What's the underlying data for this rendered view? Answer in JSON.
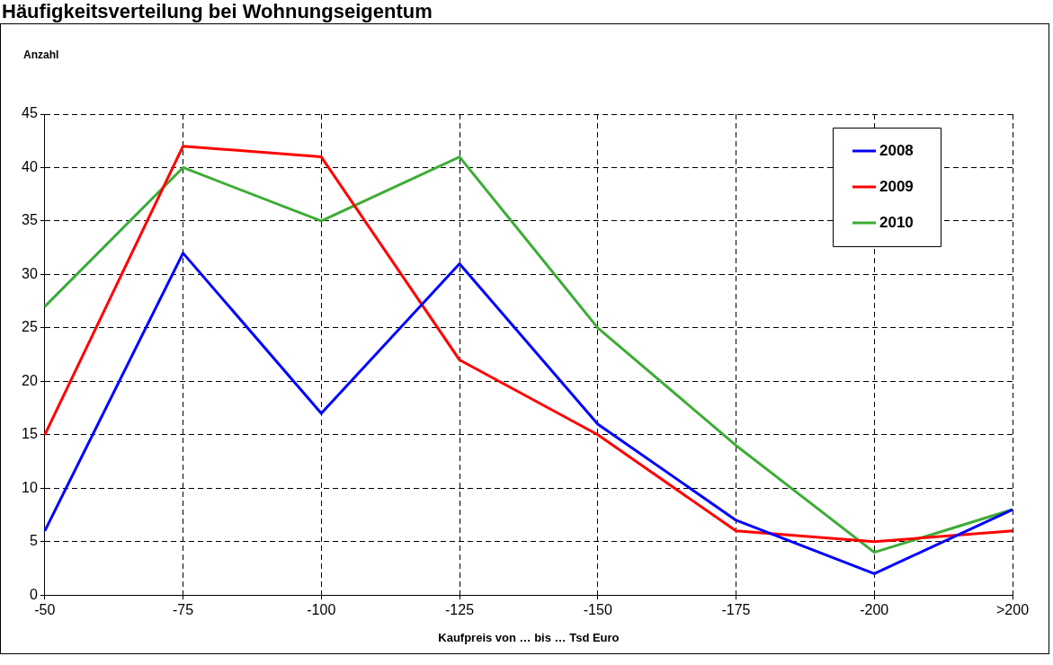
{
  "chart_data": {
    "type": "line",
    "title": "Häufigkeitsverteilung bei Wohnungseigentum",
    "xlabel": "Kaufpreis von … bis … Tsd Euro",
    "ylabel": "Anzahl",
    "categories": [
      "-50",
      "-75",
      "-100",
      "-125",
      "-150",
      "-175",
      "-200",
      ">200"
    ],
    "series": [
      {
        "name": "2008",
        "color": "#0000ff",
        "values": [
          6,
          32,
          17,
          31,
          16,
          7,
          2,
          8
        ]
      },
      {
        "name": "2009",
        "color": "#ff0000",
        "values": [
          15,
          42,
          41,
          22,
          15,
          6,
          5,
          6
        ]
      },
      {
        "name": "2010",
        "color": "#3cac34",
        "values": [
          27,
          40,
          35,
          41,
          25,
          14,
          4,
          8
        ]
      }
    ],
    "ylim": [
      0,
      45
    ],
    "yticks": [
      0,
      5,
      10,
      15,
      20,
      25,
      30,
      35,
      40,
      45
    ],
    "grid": true,
    "legend": "top right",
    "marker": "none",
    "line_style": "solid"
  }
}
